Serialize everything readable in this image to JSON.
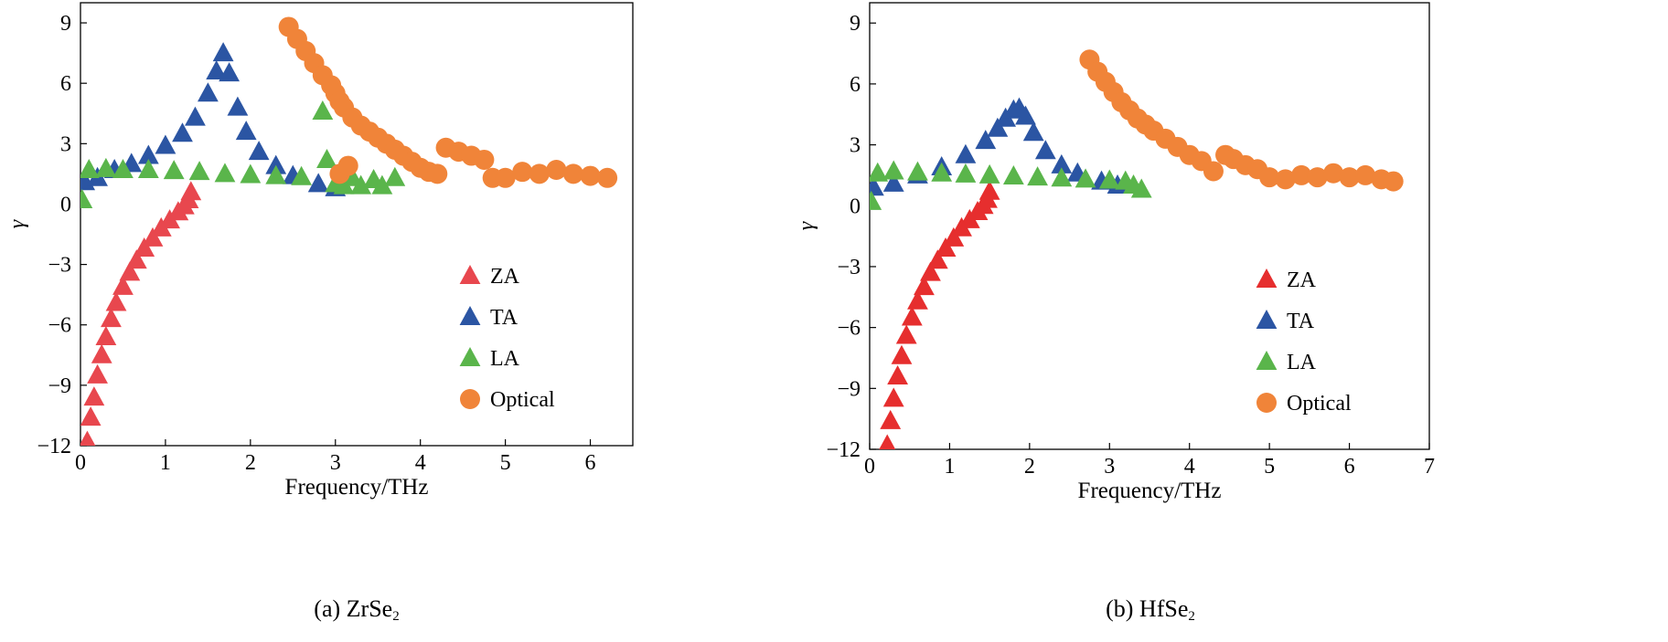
{
  "chart_data": [
    {
      "type": "scatter",
      "xlabel": "Frequency/THz",
      "ylabel": "γ",
      "xlim": [
        0,
        6.5
      ],
      "ylim": [
        -12,
        10
      ],
      "xticks": [
        0,
        1,
        2,
        3,
        4,
        5,
        6
      ],
      "yticks": [
        -12,
        -9,
        -6,
        -3,
        0,
        3,
        6,
        9
      ],
      "caption_prefix": "(a) ZrSe",
      "caption_sub": "2",
      "legend_position": "bottom-right",
      "series": [
        {
          "name": "ZA",
          "marker": "triangle",
          "color": "#e8474e",
          "x": [
            0.08,
            0.12,
            0.16,
            0.2,
            0.25,
            0.3,
            0.36,
            0.42,
            0.5,
            0.58,
            0.66,
            0.75,
            0.85,
            0.95,
            1.05,
            1.15,
            1.22,
            1.27,
            1.3
          ],
          "y": [
            -11.8,
            -10.6,
            -9.6,
            -8.5,
            -7.5,
            -6.6,
            -5.7,
            -4.9,
            -4.1,
            -3.4,
            -2.8,
            -2.2,
            -1.7,
            -1.2,
            -0.8,
            -0.4,
            -0.1,
            0.2,
            0.6
          ]
        },
        {
          "name": "TA",
          "marker": "triangle",
          "color": "#2b55a3",
          "x": [
            0.05,
            0.2,
            0.4,
            0.6,
            0.8,
            1.0,
            1.2,
            1.35,
            1.5,
            1.6,
            1.68,
            1.75,
            1.85,
            1.95,
            2.1,
            2.3,
            2.5,
            2.8,
            3.0
          ],
          "y": [
            1.1,
            1.3,
            1.7,
            2.0,
            2.4,
            2.9,
            3.5,
            4.3,
            5.5,
            6.6,
            7.5,
            6.5,
            4.8,
            3.6,
            2.6,
            1.9,
            1.4,
            1.0,
            0.8
          ]
        },
        {
          "name": "LA",
          "marker": "triangle",
          "color": "#5ab54b",
          "x": [
            0.02,
            0.1,
            0.3,
            0.5,
            0.8,
            1.1,
            1.4,
            1.7,
            2.0,
            2.3,
            2.6,
            2.85,
            2.9,
            3.0,
            3.1,
            3.2,
            3.3,
            3.45,
            3.55,
            3.7
          ],
          "y": [
            0.2,
            1.7,
            1.75,
            1.7,
            1.7,
            1.65,
            1.6,
            1.5,
            1.45,
            1.4,
            1.35,
            4.6,
            2.2,
            1.0,
            0.9,
            1.3,
            0.9,
            1.2,
            0.9,
            1.3
          ]
        },
        {
          "name": "Optical",
          "marker": "circle",
          "color": "#f08439",
          "x": [
            2.45,
            2.55,
            2.65,
            2.75,
            2.85,
            2.95,
            3.0,
            3.05,
            3.1,
            3.2,
            3.3,
            3.4,
            3.5,
            3.6,
            3.7,
            3.8,
            3.9,
            4.0,
            4.1,
            4.2,
            4.3,
            4.45,
            4.6,
            4.75,
            4.85,
            5.0,
            5.2,
            5.4,
            5.6,
            5.8,
            6.0,
            6.2,
            3.05,
            3.15
          ],
          "y": [
            8.8,
            8.2,
            7.6,
            7.0,
            6.4,
            5.9,
            5.5,
            5.1,
            4.8,
            4.3,
            3.9,
            3.6,
            3.3,
            3.0,
            2.7,
            2.4,
            2.1,
            1.8,
            1.6,
            1.5,
            2.8,
            2.6,
            2.4,
            2.2,
            1.3,
            1.3,
            1.6,
            1.5,
            1.7,
            1.5,
            1.4,
            1.3,
            1.5,
            1.9
          ]
        }
      ]
    },
    {
      "type": "scatter",
      "xlabel": "Frequency/THz",
      "ylabel": "γ",
      "xlim": [
        0,
        7
      ],
      "ylim": [
        -12,
        10
      ],
      "xticks": [
        0,
        1,
        2,
        3,
        4,
        5,
        6,
        7
      ],
      "yticks": [
        -12,
        -9,
        -6,
        -3,
        0,
        3,
        6,
        9
      ],
      "caption_prefix": "(b) HfSe",
      "caption_sub": "2",
      "legend_position": "bottom-right",
      "series": [
        {
          "name": "ZA",
          "marker": "triangle",
          "color": "#e62e2e",
          "x": [
            0.22,
            0.26,
            0.3,
            0.35,
            0.4,
            0.46,
            0.53,
            0.6,
            0.68,
            0.76,
            0.85,
            0.95,
            1.05,
            1.15,
            1.25,
            1.35,
            1.42,
            1.47,
            1.5
          ],
          "y": [
            -11.8,
            -10.6,
            -9.5,
            -8.4,
            -7.4,
            -6.4,
            -5.5,
            -4.7,
            -4.0,
            -3.3,
            -2.7,
            -2.1,
            -1.6,
            -1.1,
            -0.7,
            -0.3,
            0.0,
            0.3,
            0.7
          ]
        },
        {
          "name": "TA",
          "marker": "triangle",
          "color": "#2b55a3",
          "x": [
            0.05,
            0.3,
            0.6,
            0.9,
            1.2,
            1.45,
            1.6,
            1.7,
            1.8,
            1.87,
            1.95,
            2.05,
            2.2,
            2.4,
            2.6,
            2.9,
            3.1
          ],
          "y": [
            0.9,
            1.1,
            1.5,
            1.9,
            2.5,
            3.2,
            3.8,
            4.3,
            4.7,
            4.8,
            4.4,
            3.6,
            2.7,
            2.0,
            1.6,
            1.2,
            1.0
          ]
        },
        {
          "name": "LA",
          "marker": "triangle",
          "color": "#5ab54b",
          "x": [
            0.02,
            0.1,
            0.3,
            0.6,
            0.9,
            1.2,
            1.5,
            1.8,
            2.1,
            2.4,
            2.7,
            3.0,
            3.2,
            3.3,
            3.4
          ],
          "y": [
            0.2,
            1.6,
            1.7,
            1.65,
            1.6,
            1.55,
            1.5,
            1.45,
            1.4,
            1.35,
            1.3,
            1.25,
            1.2,
            1.0,
            0.8
          ]
        },
        {
          "name": "Optical",
          "marker": "circle",
          "color": "#f08439",
          "x": [
            2.75,
            2.85,
            2.95,
            3.05,
            3.15,
            3.25,
            3.35,
            3.45,
            3.55,
            3.7,
            3.85,
            4.0,
            4.15,
            4.3,
            4.45,
            4.55,
            4.7,
            4.85,
            5.0,
            5.2,
            5.4,
            5.6,
            5.8,
            6.0,
            6.2,
            6.4,
            6.55
          ],
          "y": [
            7.2,
            6.6,
            6.1,
            5.6,
            5.1,
            4.7,
            4.3,
            4.0,
            3.7,
            3.3,
            2.9,
            2.5,
            2.2,
            1.7,
            2.5,
            2.3,
            2.0,
            1.8,
            1.4,
            1.3,
            1.5,
            1.4,
            1.6,
            1.4,
            1.5,
            1.3,
            1.2
          ]
        }
      ]
    }
  ]
}
